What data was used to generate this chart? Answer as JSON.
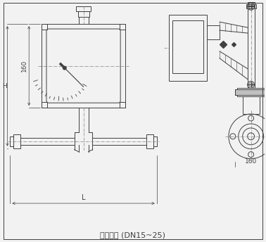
{
  "title": "水平安装 (DN15~25)",
  "title_fontsize": 8,
  "bg_color": "#f2f2f2",
  "line_color": "#404040",
  "dash_color": "#808080",
  "dim_label_160": "160",
  "dim_label_L": "L",
  "dim_label_H": "H",
  "dim_label_160v": "160"
}
